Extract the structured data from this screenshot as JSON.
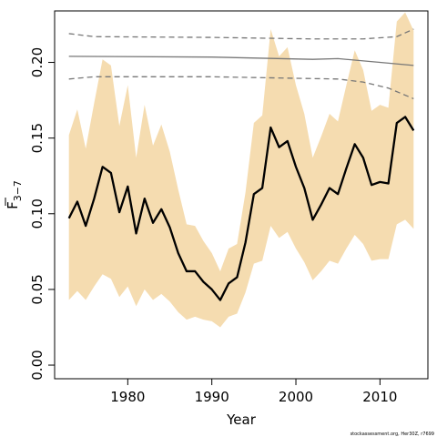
{
  "chart_data": {
    "type": "line",
    "xlabel": "Year",
    "ylabel_main": "F",
    "ylabel_sub": "3−7",
    "xlim": [
      1971.3,
      2015.7
    ],
    "ylim": [
      -0.009,
      0.234
    ],
    "x_ticks": [
      1980,
      1990,
      2000,
      2010
    ],
    "y_ticks": [
      0.0,
      0.05,
      0.1,
      0.15,
      0.2
    ],
    "y_tick_labels": [
      "0.00",
      "0.05",
      "0.10",
      "0.15",
      "0.20"
    ],
    "grid": false,
    "legend": "none",
    "colors": {
      "band": "#f5dcb0",
      "series": "#000000",
      "reference": "#777777"
    },
    "years": [
      1973,
      1974,
      1975,
      1976,
      1977,
      1978,
      1979,
      1980,
      1981,
      1982,
      1983,
      1984,
      1985,
      1986,
      1987,
      1988,
      1989,
      1990,
      1991,
      1992,
      1993,
      1994,
      1995,
      1996,
      1997,
      1998,
      1999,
      2000,
      2001,
      2002,
      2003,
      2004,
      2005,
      2006,
      2007,
      2008,
      2009,
      2010,
      2011,
      2012,
      2013,
      2014
    ],
    "series": [
      {
        "role": "estimate",
        "values": [
          0.097,
          0.108,
          0.092,
          0.11,
          0.131,
          0.127,
          0.101,
          0.118,
          0.087,
          0.11,
          0.094,
          0.103,
          0.091,
          0.074,
          0.062,
          0.062,
          0.055,
          0.05,
          0.043,
          0.054,
          0.058,
          0.081,
          0.113,
          0.117,
          0.157,
          0.144,
          0.148,
          0.131,
          0.117,
          0.096,
          0.106,
          0.117,
          0.113,
          0.13,
          0.146,
          0.137,
          0.119,
          0.121,
          0.12,
          0.16,
          0.164,
          0.155
        ]
      },
      {
        "role": "band_upper",
        "values": [
          0.152,
          0.169,
          0.143,
          0.173,
          0.202,
          0.198,
          0.158,
          0.185,
          0.137,
          0.172,
          0.145,
          0.159,
          0.141,
          0.116,
          0.093,
          0.092,
          0.082,
          0.074,
          0.062,
          0.077,
          0.08,
          0.114,
          0.16,
          0.165,
          0.222,
          0.204,
          0.21,
          0.185,
          0.166,
          0.137,
          0.151,
          0.166,
          0.161,
          0.185,
          0.208,
          0.195,
          0.168,
          0.172,
          0.17,
          0.227,
          0.233,
          0.221
        ]
      },
      {
        "role": "band_lower",
        "values": [
          0.043,
          0.049,
          0.043,
          0.052,
          0.06,
          0.057,
          0.045,
          0.052,
          0.039,
          0.05,
          0.043,
          0.047,
          0.042,
          0.035,
          0.03,
          0.032,
          0.03,
          0.029,
          0.025,
          0.032,
          0.034,
          0.048,
          0.067,
          0.069,
          0.092,
          0.084,
          0.088,
          0.077,
          0.068,
          0.056,
          0.062,
          0.069,
          0.067,
          0.077,
          0.086,
          0.08,
          0.069,
          0.07,
          0.07,
          0.093,
          0.096,
          0.09
        ]
      },
      {
        "role": "reference",
        "dash": false,
        "x": [
          1973,
          1990,
          2002,
          2005,
          2010,
          2014
        ],
        "values": [
          0.204,
          0.2035,
          0.202,
          0.2025,
          0.2,
          0.198
        ]
      },
      {
        "role": "reference_upper",
        "dash": true,
        "x": [
          1973,
          1976,
          1990,
          2002,
          2008,
          2012,
          2014
        ],
        "values": [
          0.219,
          0.217,
          0.2165,
          0.2155,
          0.2155,
          0.217,
          0.222
        ]
      },
      {
        "role": "reference_lower",
        "dash": true,
        "x": [
          1973,
          1976,
          1990,
          2000,
          2005,
          2008,
          2011,
          2014
        ],
        "values": [
          0.189,
          0.1905,
          0.1905,
          0.1895,
          0.189,
          0.187,
          0.183,
          0.176
        ]
      }
    ]
  },
  "footer": {
    "credit": "stockassessment.org, Her30Z, r7699"
  }
}
